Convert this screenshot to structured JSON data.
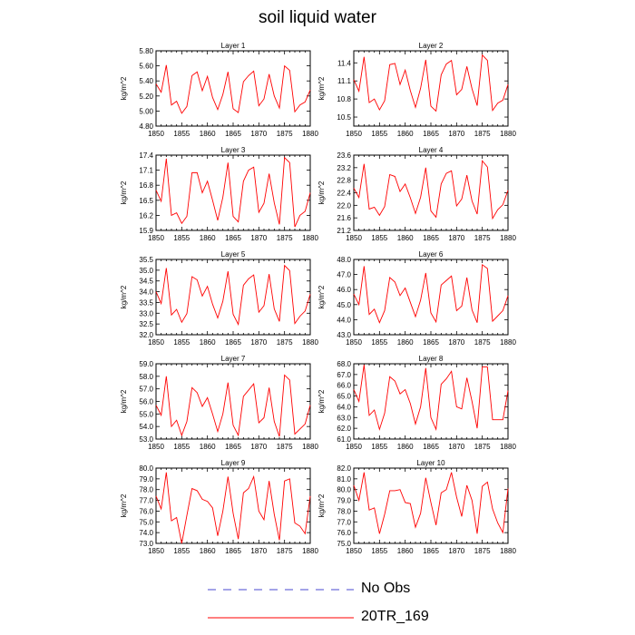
{
  "title": "soil liquid water",
  "legend": {
    "items": [
      {
        "label": "No Obs",
        "color": "#4a4ad0",
        "dash": true
      },
      {
        "label": "20TR_169",
        "color": "#ff0000",
        "dash": false
      }
    ]
  },
  "chart_data": [
    {
      "type": "line",
      "title": "Layer 1",
      "ylabel": "kg/m^2",
      "xlim": [
        1850,
        1880
      ],
      "xticks": [
        1850,
        1855,
        1860,
        1865,
        1870,
        1875,
        1880
      ],
      "ylim": [
        4.8,
        5.8
      ],
      "yticks": [
        "4.80",
        "5.00",
        "5.20",
        "5.40",
        "5.60",
        "5.80"
      ],
      "series": [
        {
          "color": "#ff0000",
          "x": [
            1850,
            1851,
            1852,
            1853,
            1854,
            1855,
            1856,
            1857,
            1858,
            1859,
            1860,
            1861,
            1862,
            1863,
            1864,
            1865,
            1866,
            1867,
            1868,
            1869,
            1870,
            1871,
            1872,
            1873,
            1874,
            1875,
            1876,
            1877,
            1878,
            1879,
            1880
          ],
          "values": [
            5.36,
            5.25,
            5.61,
            5.08,
            5.13,
            4.97,
            5.06,
            5.47,
            5.52,
            5.27,
            5.46,
            5.18,
            5.02,
            5.22,
            5.52,
            5.03,
            4.98,
            5.39,
            5.47,
            5.53,
            5.07,
            5.16,
            5.49,
            5.2,
            5.04,
            5.6,
            5.54,
            4.99,
            5.08,
            5.12,
            5.28
          ]
        }
      ]
    },
    {
      "type": "line",
      "title": "Layer 2",
      "ylabel": "kg/m^2",
      "xlim": [
        1850,
        1880
      ],
      "xticks": [
        1850,
        1855,
        1860,
        1865,
        1870,
        1875,
        1880
      ],
      "ylim": [
        10.35,
        11.6
      ],
      "yticks": [
        "10.5",
        "10.8",
        "11.1",
        "11.4"
      ],
      "series": [
        {
          "color": "#ff0000",
          "x": [
            1850,
            1851,
            1852,
            1853,
            1854,
            1855,
            1856,
            1857,
            1858,
            1859,
            1860,
            1861,
            1862,
            1863,
            1864,
            1865,
            1866,
            1867,
            1868,
            1869,
            1870,
            1871,
            1872,
            1873,
            1874,
            1875,
            1876,
            1877,
            1878,
            1879,
            1880
          ],
          "values": [
            11.12,
            10.93,
            11.5,
            10.74,
            10.8,
            10.62,
            10.77,
            11.37,
            11.39,
            11.04,
            11.28,
            10.94,
            10.66,
            10.98,
            11.45,
            10.68,
            10.6,
            11.2,
            11.38,
            11.44,
            10.87,
            10.96,
            11.34,
            10.97,
            10.69,
            11.53,
            11.44,
            10.61,
            10.73,
            10.78,
            11.04
          ]
        }
      ]
    },
    {
      "type": "line",
      "title": "Layer 3",
      "ylabel": "kg/m^2",
      "xlim": [
        1850,
        1880
      ],
      "xticks": [
        1850,
        1855,
        1860,
        1865,
        1870,
        1875,
        1880
      ],
      "ylim": [
        15.9,
        17.4
      ],
      "yticks": [
        "15.9",
        "16.2",
        "16.5",
        "16.8",
        "17.1",
        "17.4"
      ],
      "series": [
        {
          "color": "#ff0000",
          "x": [
            1850,
            1851,
            1852,
            1853,
            1854,
            1855,
            1856,
            1857,
            1858,
            1859,
            1860,
            1861,
            1862,
            1863,
            1864,
            1865,
            1866,
            1867,
            1868,
            1869,
            1870,
            1871,
            1872,
            1873,
            1874,
            1875,
            1876,
            1877,
            1878,
            1879,
            1880
          ],
          "values": [
            16.7,
            16.48,
            17.33,
            16.2,
            16.25,
            16.04,
            16.18,
            17.05,
            17.05,
            16.65,
            16.88,
            16.5,
            16.1,
            16.56,
            17.25,
            16.18,
            16.07,
            16.88,
            17.1,
            17.16,
            16.26,
            16.44,
            17.03,
            16.45,
            16.02,
            17.35,
            17.25,
            15.97,
            16.2,
            16.28,
            16.65
          ]
        }
      ]
    },
    {
      "type": "line",
      "title": "Layer 4",
      "ylabel": "kg/m^2",
      "xlim": [
        1850,
        1880
      ],
      "xticks": [
        1850,
        1855,
        1860,
        1865,
        1870,
        1875,
        1880
      ],
      "ylim": [
        21.2,
        23.6
      ],
      "yticks": [
        "21.2",
        "21.6",
        "22.0",
        "22.4",
        "22.8",
        "23.2",
        "23.6"
      ],
      "series": [
        {
          "color": "#ff0000",
          "x": [
            1850,
            1851,
            1852,
            1853,
            1854,
            1855,
            1856,
            1857,
            1858,
            1859,
            1860,
            1861,
            1862,
            1863,
            1864,
            1865,
            1866,
            1867,
            1868,
            1869,
            1870,
            1871,
            1872,
            1873,
            1874,
            1875,
            1876,
            1877,
            1878,
            1879,
            1880
          ],
          "values": [
            22.55,
            22.25,
            23.32,
            21.88,
            21.94,
            21.68,
            21.96,
            22.98,
            22.92,
            22.44,
            22.68,
            22.24,
            21.74,
            22.26,
            23.2,
            21.82,
            21.62,
            22.68,
            23.02,
            23.1,
            21.98,
            22.2,
            22.96,
            22.14,
            21.72,
            23.42,
            23.22,
            21.58,
            21.86,
            22.02,
            22.48
          ]
        }
      ]
    },
    {
      "type": "line",
      "title": "Layer 5",
      "ylabel": "kg/m^2",
      "xlim": [
        1850,
        1880
      ],
      "xticks": [
        1850,
        1855,
        1860,
        1865,
        1870,
        1875,
        1880
      ],
      "ylim": [
        32.0,
        35.5
      ],
      "yticks": [
        "32.0",
        "32.5",
        "33.0",
        "33.5",
        "34.0",
        "34.5",
        "35.0",
        "35.5"
      ],
      "series": [
        {
          "color": "#ff0000",
          "x": [
            1850,
            1851,
            1852,
            1853,
            1854,
            1855,
            1856,
            1857,
            1858,
            1859,
            1860,
            1861,
            1862,
            1863,
            1864,
            1865,
            1866,
            1867,
            1868,
            1869,
            1870,
            1871,
            1872,
            1873,
            1874,
            1875,
            1876,
            1877,
            1878,
            1879,
            1880
          ],
          "values": [
            34.0,
            33.45,
            35.1,
            32.92,
            33.18,
            32.58,
            32.98,
            34.7,
            34.55,
            33.8,
            34.25,
            33.42,
            32.78,
            33.56,
            34.95,
            32.95,
            32.48,
            34.3,
            34.6,
            34.78,
            33.05,
            33.35,
            34.82,
            33.2,
            32.62,
            35.22,
            34.98,
            32.52,
            32.86,
            33.1,
            33.88
          ]
        }
      ]
    },
    {
      "type": "line",
      "title": "Layer 6",
      "ylabel": "kg/m^2",
      "xlim": [
        1850,
        1880
      ],
      "xticks": [
        1850,
        1855,
        1860,
        1865,
        1870,
        1875,
        1880
      ],
      "ylim": [
        43.0,
        48.0
      ],
      "yticks": [
        "43.0",
        "44.0",
        "45.0",
        "46.0",
        "47.0",
        "48.0"
      ],
      "series": [
        {
          "color": "#ff0000",
          "x": [
            1850,
            1851,
            1852,
            1853,
            1854,
            1855,
            1856,
            1857,
            1858,
            1859,
            1860,
            1861,
            1862,
            1863,
            1864,
            1865,
            1866,
            1867,
            1868,
            1869,
            1870,
            1871,
            1872,
            1873,
            1874,
            1875,
            1876,
            1877,
            1878,
            1879,
            1880
          ],
          "values": [
            45.7,
            45.0,
            47.55,
            44.35,
            44.7,
            43.8,
            44.6,
            46.8,
            46.5,
            45.6,
            46.1,
            45.15,
            44.2,
            45.3,
            47.1,
            44.45,
            43.85,
            46.3,
            46.6,
            46.9,
            44.6,
            44.9,
            46.8,
            44.65,
            43.8,
            47.65,
            47.4,
            43.9,
            44.25,
            44.6,
            45.6
          ]
        }
      ]
    },
    {
      "type": "line",
      "title": "Layer 7",
      "ylabel": "kg/m^2",
      "xlim": [
        1850,
        1880
      ],
      "xticks": [
        1850,
        1855,
        1860,
        1865,
        1870,
        1875,
        1880
      ],
      "ylim": [
        53.0,
        59.0
      ],
      "yticks": [
        "53.0",
        "54.0",
        "55.0",
        "56.0",
        "57.0",
        "58.0",
        "59.0"
      ],
      "series": [
        {
          "color": "#ff0000",
          "x": [
            1850,
            1851,
            1852,
            1853,
            1854,
            1855,
            1856,
            1857,
            1858,
            1859,
            1860,
            1861,
            1862,
            1863,
            1864,
            1865,
            1866,
            1867,
            1868,
            1869,
            1870,
            1871,
            1872,
            1873,
            1874,
            1875,
            1876,
            1877,
            1878,
            1879,
            1880
          ],
          "values": [
            55.7,
            54.9,
            58.0,
            54.0,
            54.5,
            53.3,
            54.4,
            57.1,
            56.7,
            55.6,
            56.3,
            55.0,
            53.6,
            55.0,
            57.5,
            54.1,
            53.3,
            56.4,
            56.9,
            57.4,
            54.3,
            54.7,
            57.1,
            54.4,
            53.2,
            58.1,
            57.7,
            53.4,
            53.8,
            54.2,
            55.7
          ]
        }
      ]
    },
    {
      "type": "line",
      "title": "Layer 8",
      "ylabel": "kg/m^2",
      "xlim": [
        1850,
        1880
      ],
      "xticks": [
        1850,
        1855,
        1860,
        1865,
        1870,
        1875,
        1880
      ],
      "ylim": [
        61.0,
        68.0
      ],
      "yticks": [
        "61.0",
        "62.0",
        "63.0",
        "64.0",
        "65.0",
        "66.0",
        "67.0",
        "68.0"
      ],
      "series": [
        {
          "color": "#ff0000",
          "x": [
            1850,
            1851,
            1852,
            1853,
            1854,
            1855,
            1856,
            1857,
            1858,
            1859,
            1860,
            1861,
            1862,
            1863,
            1864,
            1865,
            1866,
            1867,
            1868,
            1869,
            1870,
            1871,
            1872,
            1873,
            1874,
            1875,
            1876,
            1877,
            1878,
            1879,
            1880
          ],
          "values": [
            65.6,
            64.5,
            67.9,
            63.2,
            63.7,
            61.9,
            63.4,
            66.8,
            66.4,
            65.2,
            65.6,
            64.3,
            62.4,
            64.0,
            67.6,
            63.0,
            61.9,
            66.1,
            66.6,
            67.3,
            64.0,
            63.8,
            66.7,
            64.5,
            62.0,
            67.7,
            67.7,
            62.8,
            62.8,
            62.8,
            65.5
          ]
        }
      ]
    },
    {
      "type": "line",
      "title": "Layer 9",
      "ylabel": "kg/m^2",
      "xlim": [
        1850,
        1880
      ],
      "xticks": [
        1850,
        1855,
        1860,
        1865,
        1870,
        1875,
        1880
      ],
      "ylim": [
        73.0,
        80.0
      ],
      "yticks": [
        "73.0",
        "74.0",
        "75.0",
        "76.0",
        "77.0",
        "78.0",
        "79.0",
        "80.0"
      ],
      "series": [
        {
          "color": "#ff0000",
          "x": [
            1850,
            1851,
            1852,
            1853,
            1854,
            1855,
            1856,
            1857,
            1858,
            1859,
            1860,
            1861,
            1862,
            1863,
            1864,
            1865,
            1866,
            1867,
            1868,
            1869,
            1870,
            1871,
            1872,
            1873,
            1874,
            1875,
            1876,
            1877,
            1878,
            1879,
            1880
          ],
          "values": [
            77.4,
            76.2,
            79.6,
            75.1,
            75.4,
            73.0,
            75.6,
            78.1,
            77.9,
            77.1,
            76.9,
            76.3,
            73.7,
            76.0,
            79.2,
            75.8,
            73.4,
            77.7,
            78.1,
            79.2,
            76.0,
            75.2,
            78.8,
            75.7,
            73.3,
            78.8,
            79.0,
            74.9,
            74.6,
            73.9,
            77.4
          ]
        }
      ]
    },
    {
      "type": "line",
      "title": "Layer 10",
      "ylabel": "kg/m^2",
      "xlim": [
        1850,
        1880
      ],
      "xticks": [
        1850,
        1855,
        1860,
        1865,
        1870,
        1875,
        1880
      ],
      "ylim": [
        75.0,
        82.0
      ],
      "yticks": [
        "75.0",
        "76.0",
        "77.0",
        "78.0",
        "79.0",
        "80.0",
        "81.0",
        "82.0"
      ],
      "series": [
        {
          "color": "#ff0000",
          "x": [
            1850,
            1851,
            1852,
            1853,
            1854,
            1855,
            1856,
            1857,
            1858,
            1859,
            1860,
            1861,
            1862,
            1863,
            1864,
            1865,
            1866,
            1867,
            1868,
            1869,
            1870,
            1871,
            1872,
            1873,
            1874,
            1875,
            1876,
            1877,
            1878,
            1879,
            1880
          ],
          "values": [
            80.4,
            79.0,
            81.6,
            78.1,
            78.3,
            75.9,
            77.7,
            79.9,
            79.9,
            80.0,
            78.8,
            78.7,
            76.5,
            77.8,
            81.1,
            78.8,
            76.7,
            79.7,
            80.0,
            81.6,
            79.3,
            77.5,
            80.4,
            79.0,
            75.9,
            80.3,
            80.7,
            78.2,
            76.9,
            76.0,
            80.1
          ]
        }
      ]
    }
  ]
}
